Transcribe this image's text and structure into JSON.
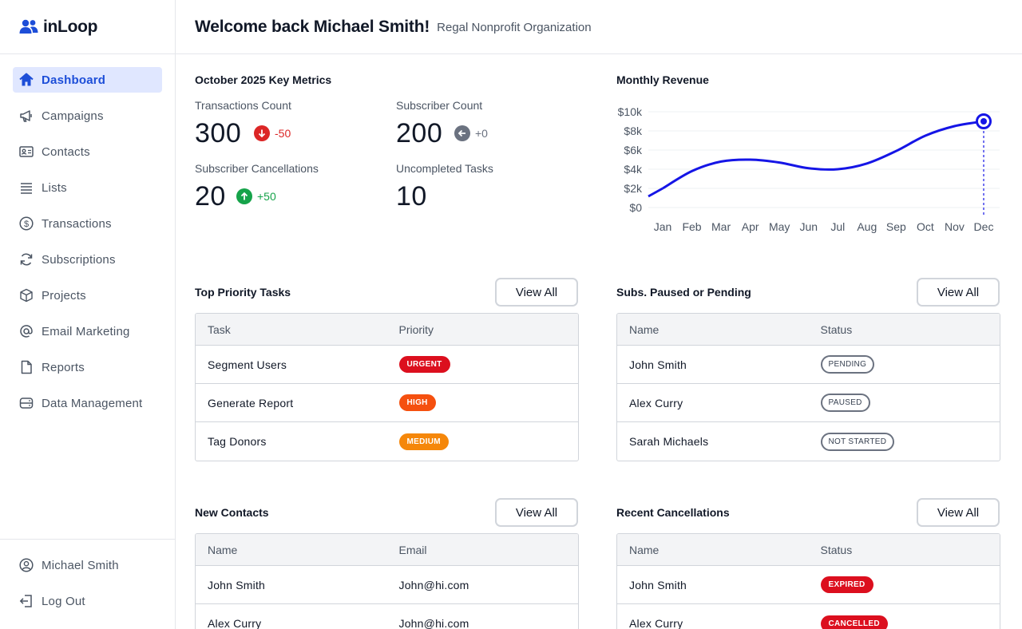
{
  "brand": {
    "name": "inLoop",
    "accent": "#1d4ed8"
  },
  "sidebar": {
    "items": [
      {
        "label": "Dashboard",
        "icon": "home-icon",
        "active": true
      },
      {
        "label": "Campaigns",
        "icon": "megaphone-icon"
      },
      {
        "label": "Contacts",
        "icon": "id-card-icon"
      },
      {
        "label": "Lists",
        "icon": "list-icon"
      },
      {
        "label": "Transactions",
        "icon": "dollar-icon"
      },
      {
        "label": "Subscriptions",
        "icon": "refresh-icon"
      },
      {
        "label": "Projects",
        "icon": "box-icon"
      },
      {
        "label": "Email Marketing",
        "icon": "at-icon"
      },
      {
        "label": "Reports",
        "icon": "document-icon"
      },
      {
        "label": "Data Management",
        "icon": "server-icon"
      }
    ],
    "user": {
      "label": "Michael Smith",
      "icon": "user-circle-icon"
    },
    "logout": {
      "label": "Log Out",
      "icon": "logout-icon"
    }
  },
  "header": {
    "welcome": "Welcome back Michael Smith!",
    "org": "Regal Nonprofit Organization"
  },
  "metrics": {
    "title": "October 2025 Key Metrics",
    "transactions": {
      "label": "Transactions Count",
      "value": "300",
      "delta": "-50",
      "direction": "down",
      "color": "#dc2626"
    },
    "subscribers": {
      "label": "Subscriber Count",
      "value": "200",
      "delta": "+0",
      "direction": "flat",
      "color": "#6b7280"
    },
    "cancellations": {
      "label": "Subscriber Cancellations",
      "value": "20",
      "delta": "+50",
      "direction": "up",
      "color": "#16a34a"
    },
    "tasks": {
      "label": "Uncompleted Tasks",
      "value": "10"
    }
  },
  "revenue": {
    "title": "Monthly Revenue"
  },
  "chart_data": {
    "type": "line",
    "title": "Monthly Revenue",
    "categories": [
      "Jan",
      "Feb",
      "Mar",
      "Apr",
      "May",
      "Jun",
      "Jul",
      "Aug",
      "Sep",
      "Oct",
      "Nov",
      "Dec"
    ],
    "values": [
      2000,
      3800,
      4800,
      5000,
      4700,
      4100,
      4000,
      4600,
      5900,
      7500,
      8500,
      9000
    ],
    "y_ticks": [
      "$0",
      "$2k",
      "$4k",
      "$6k",
      "$8k",
      "$10k"
    ],
    "ylim": [
      0,
      10000
    ],
    "grid": true,
    "highlight": "Dec",
    "line_color": "#1515e6"
  },
  "tasks": {
    "title": "Top Priority Tasks",
    "view_all": "View All",
    "columns": [
      "Task",
      "Priority"
    ],
    "rows": [
      {
        "name": "Segment Users",
        "badge": "URGENT",
        "color": "#dc0f1e"
      },
      {
        "name": "Generate Report",
        "badge": "HIGH",
        "color": "#f5500f"
      },
      {
        "name": "Tag Donors",
        "badge": "MEDIUM",
        "color": "#f5870a"
      }
    ]
  },
  "subs": {
    "title": "Subs. Paused or Pending",
    "view_all": "View All",
    "columns": [
      "Name",
      "Status"
    ],
    "rows": [
      {
        "name": "John Smith",
        "badge": "PENDING"
      },
      {
        "name": "Alex Curry",
        "badge": "PAUSED"
      },
      {
        "name": "Sarah Michaels",
        "badge": "NOT STARTED"
      }
    ]
  },
  "contacts": {
    "title": "New Contacts",
    "view_all": "View All",
    "columns": [
      "Name",
      "Email"
    ],
    "rows": [
      {
        "name": "John Smith",
        "email": "John@hi.com"
      },
      {
        "name": "Alex Curry",
        "email": "John@hi.com"
      }
    ]
  },
  "cancellations": {
    "title": "Recent Cancellations",
    "view_all": "View All",
    "columns": [
      "Name",
      "Status"
    ],
    "rows": [
      {
        "name": "John Smith",
        "badge": "EXPIRED",
        "color": "#dc0f1e"
      },
      {
        "name": "Alex Curry",
        "badge": "CANCELLED",
        "color": "#dc0f1e"
      }
    ]
  }
}
